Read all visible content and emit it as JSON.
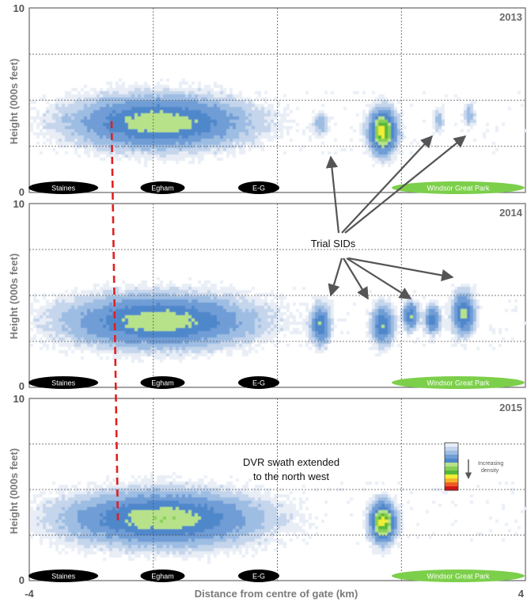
{
  "chart_data": {
    "type": "heatmap",
    "ylabel": "Height (000s feet)",
    "xlabel": "Distance from centre of gate (km)",
    "xlim": [
      -4,
      4
    ],
    "ylim": [
      0,
      10
    ],
    "x_ticks": [
      "-4",
      "4"
    ],
    "y_ticks": [
      "0",
      "10"
    ],
    "grid": true,
    "locations": [
      {
        "label": "Staines",
        "x": -3.45
      },
      {
        "label": "Egham",
        "x": -1.85
      },
      {
        "label": "E-G",
        "x": -0.3
      },
      {
        "label": "Windsor Great Park",
        "x": 2.45
      }
    ],
    "panels": [
      {
        "year": "2013",
        "clusters": [
          {
            "x": -1.9,
            "y": 3.8,
            "sx": 0.9,
            "sy": 0.9,
            "peak": 0.55
          },
          {
            "x": 1.7,
            "y": 3.3,
            "sx": 0.14,
            "sy": 0.75,
            "peak": 0.8
          },
          {
            "x": 0.7,
            "y": 3.7,
            "sx": 0.08,
            "sy": 0.4,
            "peak": 0.2
          },
          {
            "x": 2.6,
            "y": 3.9,
            "sx": 0.06,
            "sy": 0.4,
            "peak": 0.18
          },
          {
            "x": 3.1,
            "y": 4.2,
            "sx": 0.06,
            "sy": 0.45,
            "peak": 0.2
          }
        ]
      },
      {
        "year": "2014",
        "clusters": [
          {
            "x": -1.9,
            "y": 3.6,
            "sx": 0.95,
            "sy": 0.9,
            "peak": 0.55
          },
          {
            "x": 0.7,
            "y": 3.4,
            "sx": 0.1,
            "sy": 0.7,
            "peak": 0.45
          },
          {
            "x": 1.7,
            "y": 3.4,
            "sx": 0.12,
            "sy": 0.7,
            "peak": 0.45
          },
          {
            "x": 2.15,
            "y": 3.9,
            "sx": 0.08,
            "sy": 0.5,
            "peak": 0.45
          },
          {
            "x": 2.5,
            "y": 3.7,
            "sx": 0.08,
            "sy": 0.5,
            "peak": 0.45
          },
          {
            "x": 3.0,
            "y": 4.0,
            "sx": 0.12,
            "sy": 0.75,
            "peak": 0.5
          }
        ]
      },
      {
        "year": "2015",
        "clusters": [
          {
            "x": -1.85,
            "y": 3.4,
            "sx": 1.0,
            "sy": 0.95,
            "peak": 0.55
          },
          {
            "x": 1.7,
            "y": 3.2,
            "sx": 0.13,
            "sy": 0.7,
            "peak": 0.8
          }
        ]
      }
    ],
    "annotations": [
      {
        "text": "Trial SIDs",
        "panel": "2014"
      },
      {
        "text": "DVR swath extended",
        "panel": "2015"
      },
      {
        "text": "to the north west",
        "panel": "2015"
      }
    ],
    "colorbar": {
      "label_lines": [
        "Increasing",
        "density"
      ],
      "colors": [
        "#e9eef6",
        "#c4d5ec",
        "#9dbde3",
        "#6f9dd6",
        "#4f87cb",
        "#b7e28a",
        "#86cf55",
        "#55b83a",
        "#f0ee35",
        "#f6b329",
        "#ef5a24",
        "#cf1518"
      ]
    },
    "colors": {
      "location_pill": "#000000",
      "windsor_pill": "#7ccf4a",
      "dvr_line": "#e02020",
      "arrow": "#555555",
      "grid": "#555555"
    }
  }
}
